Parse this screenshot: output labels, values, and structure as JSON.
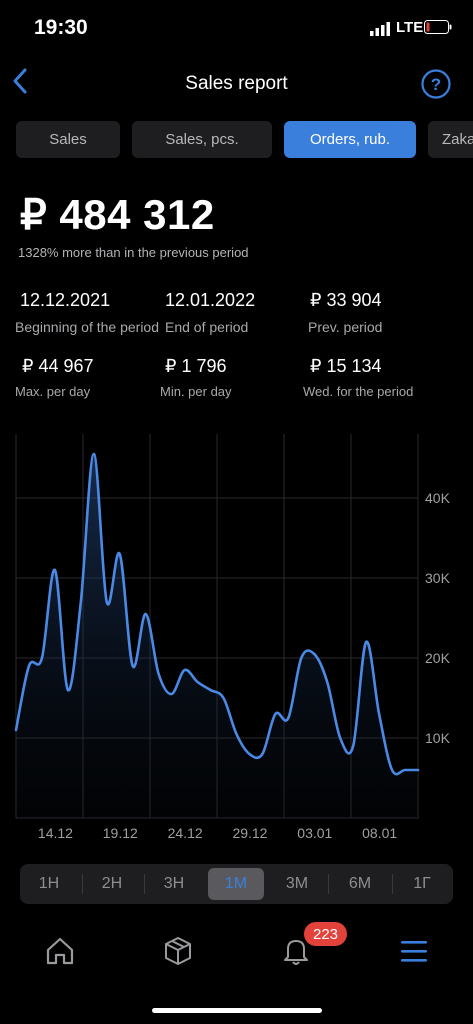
{
  "status": {
    "time": "19:30",
    "network": "LTE"
  },
  "header": {
    "title": "Sales report"
  },
  "tabs": [
    {
      "label": "Sales",
      "active": false
    },
    {
      "label": "Sales, pcs.",
      "active": false
    },
    {
      "label": "Orders, rub.",
      "active": true
    },
    {
      "label": "Zaka",
      "active": false
    }
  ],
  "summary": {
    "total": "₽ 484 312",
    "comparison": "1328% more than in the previous period"
  },
  "stats": [
    {
      "value": "12.12.2021",
      "label": "Beginning of the period"
    },
    {
      "value": "12.01.2022",
      "label": "End of period"
    },
    {
      "value": "₽  33 904",
      "label": "Prev. period"
    },
    {
      "value": "₽ 44 967",
      "label": "Max. per day"
    },
    {
      "value": "₽ 1 796",
      "label": "Min. per day"
    },
    {
      "value": "₽ 15 134",
      "label": "Wed. for the period"
    }
  ],
  "chart_data": {
    "type": "area",
    "x": [
      "12.12",
      "13.12",
      "14.12",
      "15.12",
      "16.12",
      "17.12",
      "18.12",
      "19.12",
      "20.12",
      "21.12",
      "22.12",
      "23.12",
      "24.12",
      "25.12",
      "26.12",
      "27.12",
      "28.12",
      "29.12",
      "30.12",
      "31.12",
      "01.01",
      "02.01",
      "03.01",
      "04.01",
      "05.01",
      "06.01",
      "07.01",
      "08.01",
      "09.01",
      "10.01",
      "11.01",
      "12.01"
    ],
    "values": [
      11000,
      19000,
      20000,
      31000,
      16000,
      27000,
      45500,
      27000,
      33000,
      19000,
      25500,
      18000,
      15500,
      18500,
      17000,
      16000,
      15000,
      10500,
      8000,
      8000,
      13000,
      12500,
      20000,
      20500,
      17000,
      10000,
      9000,
      22000,
      13000,
      6000,
      6000,
      6000
    ],
    "ylim": [
      0,
      48000
    ],
    "y_ticks": [
      "10K",
      "20K",
      "30K",
      "40K"
    ],
    "x_ticks": [
      "14.12",
      "19.12",
      "24.12",
      "29.12",
      "03.01",
      "08.01"
    ],
    "grid": true,
    "color": "#4a8ae6"
  },
  "ranges": [
    {
      "label": "1Н",
      "active": false
    },
    {
      "label": "2Н",
      "active": false
    },
    {
      "label": "3Н",
      "active": false
    },
    {
      "label": "1М",
      "active": true
    },
    {
      "label": "3М",
      "active": false
    },
    {
      "label": "6М",
      "active": false
    },
    {
      "label": "1Г",
      "active": false
    }
  ],
  "bottom_nav": [
    {
      "icon": "home-icon"
    },
    {
      "icon": "box-icon"
    },
    {
      "icon": "bell-icon",
      "badge": "223"
    },
    {
      "icon": "menu-icon"
    }
  ],
  "colors": {
    "accent": "#3a7fdc",
    "badge": "#e2423a",
    "background": "#000000"
  }
}
